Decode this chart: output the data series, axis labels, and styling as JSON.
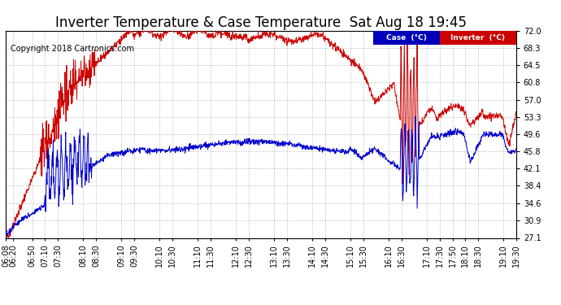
{
  "title": "Inverter Temperature & Case Temperature  Sat Aug 18 19:45",
  "copyright": "Copyright 2018 Cartronics.com",
  "ylabel_right_ticks": [
    27.1,
    30.9,
    34.6,
    38.4,
    42.1,
    45.8,
    49.6,
    53.3,
    57.0,
    60.8,
    64.5,
    68.3,
    72.0
  ],
  "x_labels": [
    "06:08",
    "06:20",
    "06:50",
    "07:10",
    "07:30",
    "08:10",
    "08:30",
    "09:10",
    "09:30",
    "10:10",
    "10:30",
    "11:10",
    "11:30",
    "12:10",
    "12:30",
    "13:10",
    "13:30",
    "14:10",
    "14:30",
    "15:10",
    "15:30",
    "16:10",
    "16:30",
    "17:10",
    "17:30",
    "17:50",
    "18:10",
    "18:30",
    "19:10",
    "19:30"
  ],
  "case_color": "#0000cc",
  "inverter_color": "#cc0000",
  "legend_case_bg": "#0000bb",
  "legend_inverter_bg": "#cc0000",
  "bg_color": "#ffffff",
  "grid_color": "#888888",
  "title_fontsize": 12,
  "copyright_fontsize": 7,
  "tick_fontsize": 7,
  "ymin": 27.1,
  "ymax": 72.0,
  "figw": 6.9,
  "figh": 3.75,
  "dpi": 100
}
